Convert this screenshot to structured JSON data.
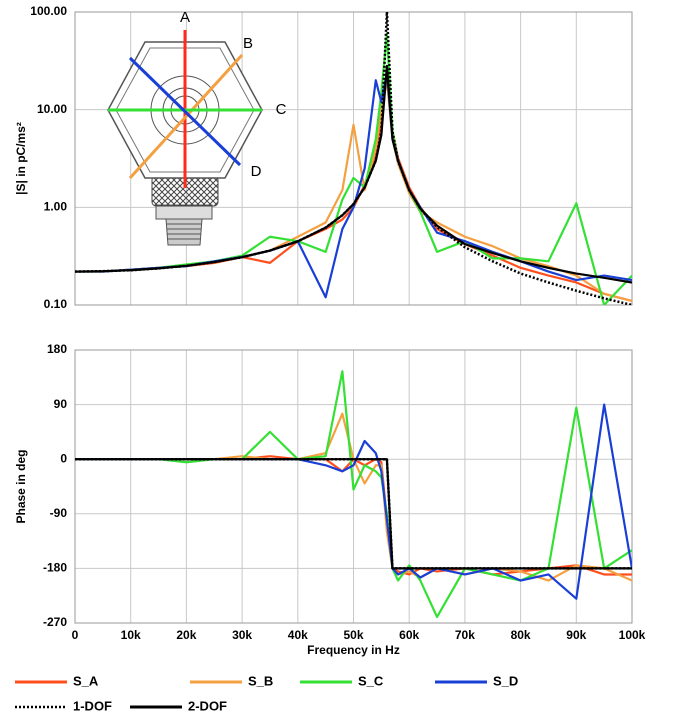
{
  "chart_data": [
    {
      "type": "line",
      "ylabel": "|S| in pC/ms²",
      "yscale": "log",
      "grid": true,
      "annotations": [
        "A",
        "B",
        "C",
        "D"
      ],
      "x": [
        0,
        5000,
        10000,
        15000,
        20000,
        25000,
        30000,
        35000,
        40000,
        45000,
        48000,
        50000,
        52000,
        54000,
        55000,
        56000,
        57000,
        58000,
        60000,
        62000,
        65000,
        70000,
        75000,
        80000,
        85000,
        90000,
        95000,
        100000
      ],
      "xlim": [
        0,
        100000
      ],
      "xticks": [
        0,
        10000,
        20000,
        30000,
        40000,
        50000,
        60000,
        70000,
        80000,
        90000,
        100000
      ],
      "ylim": [
        0.1,
        100
      ],
      "yticks": [
        {
          "value": 100,
          "label": "100.00"
        },
        {
          "value": 10,
          "label": "10.00"
        },
        {
          "value": 1,
          "label": "1.00"
        },
        {
          "value": 0.1,
          "label": "0.10"
        }
      ],
      "series": [
        {
          "name": "S_A",
          "color": "#ff4f1f",
          "style": "solid",
          "values": [
            0.22,
            0.22,
            0.23,
            0.24,
            0.25,
            0.27,
            0.31,
            0.27,
            0.45,
            0.6,
            0.75,
            1.0,
            1.7,
            3.5,
            8,
            22,
            6,
            3.2,
            1.6,
            1.0,
            0.6,
            0.42,
            0.32,
            0.24,
            0.2,
            0.17,
            0.13,
            0.11
          ]
        },
        {
          "name": "S_B",
          "color": "#f5a040",
          "style": "solid",
          "values": [
            0.22,
            0.22,
            0.23,
            0.24,
            0.25,
            0.28,
            0.31,
            0.36,
            0.5,
            0.7,
            1.5,
            7,
            1.5,
            4,
            10,
            20,
            5,
            2.8,
            1.4,
            0.9,
            0.7,
            0.5,
            0.4,
            0.3,
            0.25,
            0.2,
            0.13,
            0.11
          ]
        },
        {
          "name": "S_C",
          "color": "#33e033",
          "style": "solid",
          "values": [
            0.22,
            0.22,
            0.23,
            0.24,
            0.26,
            0.28,
            0.32,
            0.5,
            0.45,
            0.35,
            1.2,
            2,
            1.6,
            5,
            15,
            60,
            6,
            3,
            1.5,
            0.9,
            0.35,
            0.45,
            0.3,
            0.3,
            0.28,
            1.1,
            0.1,
            0.2
          ]
        },
        {
          "name": "S_D",
          "color": "#1a3fd6",
          "style": "solid",
          "values": [
            0.22,
            0.22,
            0.23,
            0.24,
            0.25,
            0.28,
            0.31,
            0.36,
            0.45,
            0.12,
            0.6,
            1.0,
            2.5,
            20,
            12,
            24,
            5,
            3,
            1.5,
            1.0,
            0.55,
            0.45,
            0.35,
            0.28,
            0.22,
            0.18,
            0.2,
            0.18
          ]
        },
        {
          "name": "1-DOF",
          "color": "#000000",
          "style": "dotted",
          "values": [
            0.22,
            0.222,
            0.227,
            0.237,
            0.252,
            0.275,
            0.309,
            0.361,
            0.449,
            0.62,
            0.83,
            1.08,
            1.6,
            3.0,
            6,
            100,
            6,
            3.0,
            1.5,
            0.97,
            0.63,
            0.39,
            0.28,
            0.21,
            0.17,
            0.14,
            0.117,
            0.1
          ]
        },
        {
          "name": "2-DOF",
          "color": "#000000",
          "style": "solid",
          "values": [
            0.22,
            0.222,
            0.227,
            0.237,
            0.252,
            0.275,
            0.309,
            0.361,
            0.449,
            0.62,
            0.83,
            1.08,
            1.6,
            3.0,
            5.5,
            28,
            5,
            3.0,
            1.5,
            0.97,
            0.65,
            0.42,
            0.34,
            0.28,
            0.24,
            0.21,
            0.19,
            0.17
          ]
        }
      ]
    },
    {
      "type": "line",
      "ylabel": "Phase in deg",
      "xlabel": "Frequency in Hz",
      "grid": true,
      "x": [
        0,
        5000,
        10000,
        15000,
        20000,
        25000,
        30000,
        35000,
        40000,
        45000,
        48000,
        50000,
        52000,
        54000,
        55000,
        56000,
        57000,
        58000,
        60000,
        62000,
        65000,
        70000,
        75000,
        80000,
        85000,
        90000,
        95000,
        100000
      ],
      "xlim": [
        0,
        100000
      ],
      "xticks": [
        0,
        {
          "value": 10000,
          "label": "10k"
        },
        {
          "value": 20000,
          "label": "20k"
        },
        {
          "value": 30000,
          "label": "30k"
        },
        {
          "value": 40000,
          "label": "40k"
        },
        {
          "value": 50000,
          "label": "50k"
        },
        {
          "value": 60000,
          "label": "60k"
        },
        {
          "value": 70000,
          "label": "70k"
        },
        {
          "value": 80000,
          "label": "80k"
        },
        {
          "value": 90000,
          "label": "90k"
        },
        {
          "value": 100000,
          "label": "100k"
        }
      ],
      "ylim": [
        -270,
        180
      ],
      "yticks": [
        180,
        90,
        0,
        -90,
        -180,
        -270
      ],
      "series": [
        {
          "color": "#ff4f1f",
          "style": "solid",
          "values": [
            0,
            0,
            0,
            0,
            0,
            0,
            0,
            5,
            0,
            0,
            -20,
            0,
            -10,
            0,
            -5,
            -100,
            -180,
            -185,
            -190,
            -180,
            -185,
            -180,
            -190,
            -185,
            -180,
            -175,
            -190,
            -190
          ]
        },
        {
          "color": "#f5a040",
          "style": "solid",
          "values": [
            0,
            0,
            0,
            0,
            0,
            0,
            5,
            0,
            0,
            10,
            75,
            0,
            -40,
            -10,
            -10,
            -120,
            -180,
            -190,
            -185,
            -195,
            -180,
            -190,
            -180,
            -185,
            -200,
            -175,
            -180,
            -200
          ]
        },
        {
          "color": "#33e033",
          "style": "solid",
          "values": [
            0,
            0,
            0,
            0,
            -5,
            0,
            0,
            45,
            0,
            5,
            145,
            -50,
            -10,
            -20,
            -30,
            -90,
            -180,
            -200,
            -175,
            -200,
            -260,
            -180,
            -190,
            -200,
            -180,
            85,
            -180,
            -150
          ]
        },
        {
          "color": "#1a3fd6",
          "style": "solid",
          "values": [
            0,
            0,
            0,
            0,
            0,
            0,
            0,
            0,
            0,
            -10,
            -20,
            -10,
            30,
            10,
            -20,
            -100,
            -180,
            -190,
            -180,
            -195,
            -180,
            -190,
            -180,
            -200,
            -190,
            -230,
            90,
            -180
          ]
        },
        {
          "color": "#000000",
          "style": "dotted",
          "values": [
            0,
            0,
            0,
            0,
            0,
            0,
            0,
            0,
            0,
            0,
            0,
            0,
            0,
            0,
            0,
            0,
            -180,
            -180,
            -180,
            -180,
            -180,
            -180,
            -180,
            -180,
            -180,
            -180,
            -180,
            -180
          ]
        },
        {
          "color": "#000000",
          "style": "solid",
          "values": [
            0,
            0,
            0,
            0,
            0,
            0,
            0,
            0,
            0,
            0,
            0,
            0,
            0,
            0,
            0,
            0,
            -180,
            -180,
            -180,
            -180,
            -180,
            -180,
            -180,
            -180,
            -180,
            -180,
            -180,
            -180
          ]
        }
      ]
    }
  ]
}
